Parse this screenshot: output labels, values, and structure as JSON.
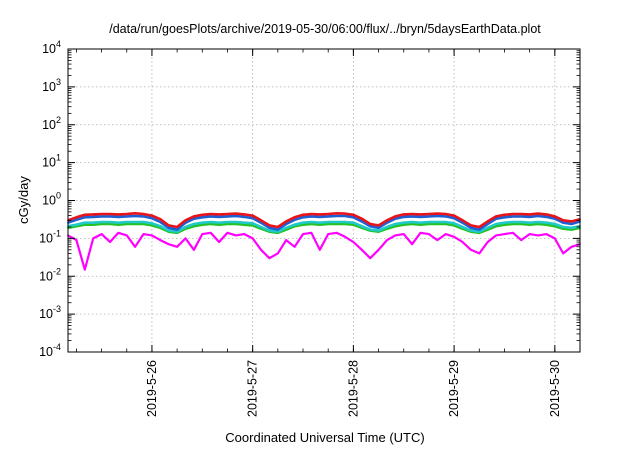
{
  "chart_data": {
    "type": "line",
    "title": "/data/run/goesPlots/archive/2019-05-30/06:00/flux/../bryn/5daysEarthData.plot",
    "xlabel": "Coordinated Universal Time (UTC)",
    "ylabel": "cGy/day",
    "y_scale": "log",
    "ylim": [
      0.0001,
      10000
    ],
    "y_ticks": [
      {
        "value": 0.0001,
        "base": "10",
        "exp": "-4"
      },
      {
        "value": 0.001,
        "base": "10",
        "exp": "-3"
      },
      {
        "value": 0.01,
        "base": "10",
        "exp": "-2"
      },
      {
        "value": 0.1,
        "base": "10",
        "exp": "-1"
      },
      {
        "value": 1,
        "base": "10",
        "exp": "0"
      },
      {
        "value": 10,
        "base": "10",
        "exp": "1"
      },
      {
        "value": 100,
        "base": "10",
        "exp": "2"
      },
      {
        "value": 1000,
        "base": "10",
        "exp": "3"
      },
      {
        "value": 10000,
        "base": "10",
        "exp": "4"
      }
    ],
    "xlim": [
      "2019-05-25T04:00",
      "2019-05-30T06:00"
    ],
    "x_ticks": [
      {
        "value": "2019-05-26T00:00",
        "label": "2019-5-26"
      },
      {
        "value": "2019-05-27T00:00",
        "label": "2019-5-27"
      },
      {
        "value": "2019-05-28T00:00",
        "label": "2019-5-28"
      },
      {
        "value": "2019-05-29T00:00",
        "label": "2019-5-29"
      },
      {
        "value": "2019-05-30T00:00",
        "label": "2019-5-30"
      }
    ],
    "grid": true,
    "legend": "none",
    "x": [
      "2019-05-25T04:00",
      "2019-05-25T06:00",
      "2019-05-25T08:00",
      "2019-05-25T10:00",
      "2019-05-25T12:00",
      "2019-05-25T14:00",
      "2019-05-25T16:00",
      "2019-05-25T18:00",
      "2019-05-25T20:00",
      "2019-05-25T22:00",
      "2019-05-26T00:00",
      "2019-05-26T02:00",
      "2019-05-26T04:00",
      "2019-05-26T06:00",
      "2019-05-26T08:00",
      "2019-05-26T10:00",
      "2019-05-26T12:00",
      "2019-05-26T14:00",
      "2019-05-26T16:00",
      "2019-05-26T18:00",
      "2019-05-26T20:00",
      "2019-05-26T22:00",
      "2019-05-27T00:00",
      "2019-05-27T02:00",
      "2019-05-27T04:00",
      "2019-05-27T06:00",
      "2019-05-27T08:00",
      "2019-05-27T10:00",
      "2019-05-27T12:00",
      "2019-05-27T14:00",
      "2019-05-27T16:00",
      "2019-05-27T18:00",
      "2019-05-27T20:00",
      "2019-05-27T22:00",
      "2019-05-28T00:00",
      "2019-05-28T02:00",
      "2019-05-28T04:00",
      "2019-05-28T06:00",
      "2019-05-28T08:00",
      "2019-05-28T10:00",
      "2019-05-28T12:00",
      "2019-05-28T14:00",
      "2019-05-28T16:00",
      "2019-05-28T18:00",
      "2019-05-28T20:00",
      "2019-05-28T22:00",
      "2019-05-29T00:00",
      "2019-05-29T02:00",
      "2019-05-29T04:00",
      "2019-05-29T06:00",
      "2019-05-29T08:00",
      "2019-05-29T10:00",
      "2019-05-29T12:00",
      "2019-05-29T14:00",
      "2019-05-29T16:00",
      "2019-05-29T18:00",
      "2019-05-29T20:00",
      "2019-05-29T22:00",
      "2019-05-30T00:00",
      "2019-05-30T02:00",
      "2019-05-30T04:00",
      "2019-05-30T06:00"
    ],
    "series": [
      {
        "color": "#e8141a",
        "values": [
          0.3,
          0.36,
          0.42,
          0.43,
          0.44,
          0.44,
          0.43,
          0.44,
          0.46,
          0.44,
          0.4,
          0.32,
          0.22,
          0.2,
          0.3,
          0.38,
          0.42,
          0.44,
          0.43,
          0.44,
          0.45,
          0.43,
          0.4,
          0.3,
          0.22,
          0.2,
          0.28,
          0.36,
          0.42,
          0.44,
          0.43,
          0.44,
          0.46,
          0.45,
          0.42,
          0.33,
          0.24,
          0.22,
          0.3,
          0.38,
          0.43,
          0.44,
          0.43,
          0.44,
          0.45,
          0.44,
          0.4,
          0.3,
          0.22,
          0.2,
          0.28,
          0.38,
          0.42,
          0.44,
          0.44,
          0.43,
          0.45,
          0.43,
          0.38,
          0.3,
          0.28,
          0.32
        ]
      },
      {
        "color": "#1f5fd4",
        "values": [
          0.26,
          0.31,
          0.36,
          0.37,
          0.38,
          0.38,
          0.37,
          0.38,
          0.39,
          0.38,
          0.34,
          0.27,
          0.19,
          0.17,
          0.26,
          0.33,
          0.36,
          0.38,
          0.37,
          0.38,
          0.39,
          0.37,
          0.34,
          0.26,
          0.19,
          0.17,
          0.24,
          0.31,
          0.36,
          0.38,
          0.37,
          0.38,
          0.39,
          0.39,
          0.36,
          0.28,
          0.21,
          0.19,
          0.26,
          0.33,
          0.37,
          0.38,
          0.37,
          0.38,
          0.39,
          0.38,
          0.34,
          0.26,
          0.19,
          0.17,
          0.24,
          0.33,
          0.36,
          0.38,
          0.38,
          0.37,
          0.39,
          0.37,
          0.33,
          0.26,
          0.24,
          0.28
        ]
      },
      {
        "color": "#21c8c8",
        "values": [
          0.21,
          0.23,
          0.26,
          0.26,
          0.27,
          0.27,
          0.26,
          0.27,
          0.27,
          0.27,
          0.25,
          0.21,
          0.16,
          0.15,
          0.2,
          0.24,
          0.26,
          0.27,
          0.26,
          0.27,
          0.27,
          0.26,
          0.25,
          0.2,
          0.16,
          0.15,
          0.19,
          0.23,
          0.26,
          0.27,
          0.26,
          0.27,
          0.27,
          0.27,
          0.26,
          0.21,
          0.17,
          0.16,
          0.2,
          0.24,
          0.26,
          0.27,
          0.26,
          0.27,
          0.27,
          0.27,
          0.25,
          0.2,
          0.16,
          0.15,
          0.19,
          0.24,
          0.26,
          0.27,
          0.27,
          0.26,
          0.27,
          0.26,
          0.24,
          0.2,
          0.19,
          0.21
        ]
      },
      {
        "color": "#22c322",
        "values": [
          0.19,
          0.21,
          0.23,
          0.23,
          0.24,
          0.24,
          0.23,
          0.24,
          0.24,
          0.24,
          0.22,
          0.19,
          0.15,
          0.14,
          0.18,
          0.21,
          0.23,
          0.24,
          0.23,
          0.24,
          0.24,
          0.23,
          0.22,
          0.18,
          0.15,
          0.14,
          0.17,
          0.21,
          0.23,
          0.24,
          0.23,
          0.24,
          0.24,
          0.24,
          0.23,
          0.19,
          0.16,
          0.15,
          0.18,
          0.21,
          0.23,
          0.24,
          0.23,
          0.24,
          0.24,
          0.24,
          0.22,
          0.18,
          0.15,
          0.14,
          0.17,
          0.21,
          0.23,
          0.24,
          0.24,
          0.23,
          0.24,
          0.23,
          0.21,
          0.18,
          0.17,
          0.19
        ]
      },
      {
        "color": "#ff00ff",
        "values": [
          0.12,
          0.09,
          0.015,
          0.1,
          0.13,
          0.08,
          0.14,
          0.12,
          0.06,
          0.13,
          0.12,
          0.09,
          0.07,
          0.06,
          0.1,
          0.05,
          0.13,
          0.14,
          0.08,
          0.14,
          0.12,
          0.13,
          0.1,
          0.05,
          0.03,
          0.04,
          0.09,
          0.06,
          0.13,
          0.14,
          0.05,
          0.13,
          0.14,
          0.11,
          0.08,
          0.05,
          0.03,
          0.05,
          0.09,
          0.12,
          0.13,
          0.07,
          0.14,
          0.13,
          0.09,
          0.13,
          0.11,
          0.08,
          0.05,
          0.04,
          0.08,
          0.12,
          0.13,
          0.14,
          0.09,
          0.13,
          0.12,
          0.13,
          0.1,
          0.04,
          0.06,
          0.07
        ]
      }
    ]
  }
}
